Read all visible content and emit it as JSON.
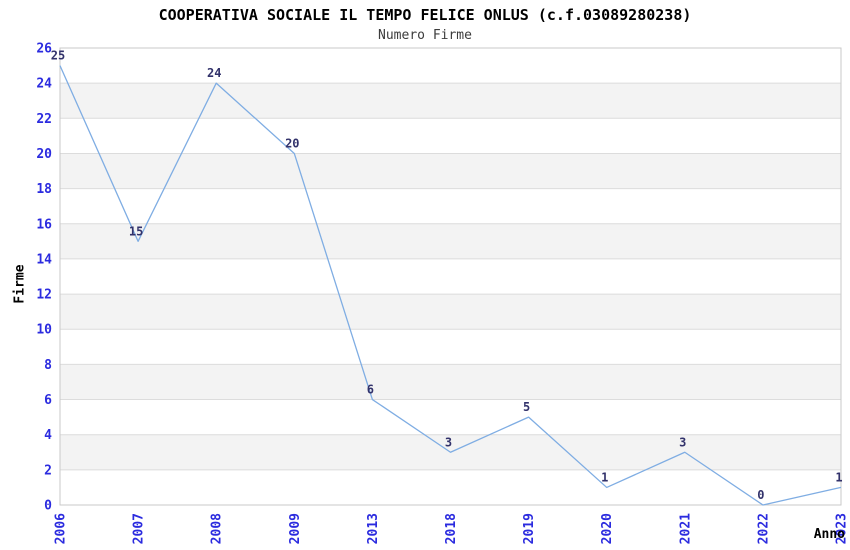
{
  "chart_data": {
    "type": "line",
    "title": "COOPERATIVA SOCIALE IL TEMPO FELICE ONLUS (c.f.03089280238)",
    "subtitle": "Numero Firme",
    "xlabel": "Anno",
    "ylabel": "Firme",
    "categories": [
      "2006",
      "2007",
      "2008",
      "2009",
      "2013",
      "2018",
      "2019",
      "2020",
      "2021",
      "2022",
      "2023"
    ],
    "values": [
      25,
      15,
      24,
      20,
      6,
      3,
      5,
      1,
      3,
      0,
      1
    ],
    "ylim": [
      0,
      26
    ],
    "ytick_step": 2,
    "legend": "none",
    "grid": "horizontal-bands-and-lines",
    "x_tick_rotation_deg": 90,
    "colors": {
      "line": "#7FADE3",
      "tick_label": "#2B2BDF",
      "data_label": "#32326B",
      "band": "#F3F3F3",
      "gridline": "#DCDCDC",
      "border": "#C9C9C9",
      "title": "#000000",
      "subtitle": "#3C3C3C",
      "axis_title": "#000000",
      "background": "#FFFFFF"
    }
  }
}
